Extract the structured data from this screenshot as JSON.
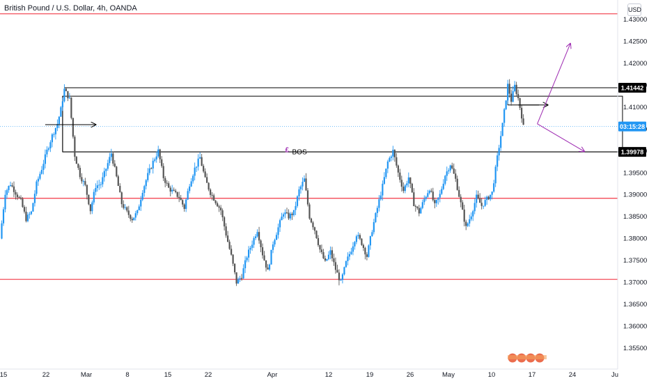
{
  "header": {
    "title": "British Pound / U.S. Dollar, 4h, OANDA",
    "currency": "USD"
  },
  "colors": {
    "up": "#2196f3",
    "down": "#555555",
    "support_line": "#f23645",
    "zone_border": "#000000",
    "arrow": "#9c27b0",
    "countdown_bg": "#2196f3"
  },
  "chart_data": {
    "type": "candlestick",
    "symbol": "GBPUSD",
    "interval": "4h",
    "ylim": [
      1.35,
      1.4313
    ],
    "y_ticks": [
      "1.43000",
      "1.42500",
      "1.42000",
      "1.41500",
      "1.41000",
      "1.40500",
      "1.40000",
      "1.39500",
      "1.39000",
      "1.38500",
      "1.38000",
      "1.37500",
      "1.37000",
      "1.36500",
      "1.36000",
      "1.35500"
    ],
    "x_ticks": [
      "15",
      "22",
      "Mar",
      "8",
      "15",
      "22",
      "Apr",
      "12",
      "19",
      "26",
      "May",
      "10",
      "17",
      "24",
      "Ju"
    ],
    "price_series": [
      [
        0,
        1.38
      ],
      [
        3,
        1.3905
      ],
      [
        6,
        1.3925
      ],
      [
        9,
        1.3905
      ],
      [
        12,
        1.3885
      ],
      [
        15,
        1.3845
      ],
      [
        18,
        1.386
      ],
      [
        21,
        1.3925
      ],
      [
        24,
        1.396
      ],
      [
        27,
        1.4
      ],
      [
        30,
        1.4035
      ],
      [
        33,
        1.4062
      ],
      [
        35,
        1.4095
      ],
      [
        37,
        1.414
      ],
      [
        40,
        1.4118
      ],
      [
        43,
        1.399
      ],
      [
        46,
        1.3945
      ],
      [
        49,
        1.392
      ],
      [
        52,
        1.3865
      ],
      [
        55,
        1.392
      ],
      [
        58,
        1.3925
      ],
      [
        61,
        1.396
      ],
      [
        64,
        1.3995
      ],
      [
        67,
        1.394
      ],
      [
        70,
        1.388
      ],
      [
        73,
        1.386
      ],
      [
        76,
        1.3845
      ],
      [
        79,
        1.386
      ],
      [
        82,
        1.391
      ],
      [
        85,
        1.3945
      ],
      [
        88,
        1.3975
      ],
      [
        91,
        1.4
      ],
      [
        94,
        1.394
      ],
      [
        97,
        1.3915
      ],
      [
        100,
        1.3905
      ],
      [
        103,
        1.3895
      ],
      [
        106,
        1.387
      ],
      [
        109,
        1.3925
      ],
      [
        112,
        1.396
      ],
      [
        115,
        1.3985
      ],
      [
        118,
        1.3935
      ],
      [
        121,
        1.3905
      ],
      [
        124,
        1.3885
      ],
      [
        127,
        1.3865
      ],
      [
        130,
        1.381
      ],
      [
        133,
        1.376
      ],
      [
        136,
        1.37
      ],
      [
        139,
        1.3715
      ],
      [
        142,
        1.376
      ],
      [
        145,
        1.379
      ],
      [
        148,
        1.382
      ],
      [
        151,
        1.3765
      ],
      [
        154,
        1.3725
      ],
      [
        157,
        1.379
      ],
      [
        160,
        1.3825
      ],
      [
        163,
        1.386
      ],
      [
        166,
        1.385
      ],
      [
        169,
        1.386
      ],
      [
        172,
        1.391
      ],
      [
        175,
        1.3935
      ],
      [
        178,
        1.385
      ],
      [
        181,
        1.382
      ],
      [
        184,
        1.3775
      ],
      [
        187,
        1.3745
      ],
      [
        190,
        1.377
      ],
      [
        193,
        1.373
      ],
      [
        196,
        1.37
      ],
      [
        199,
        1.3745
      ],
      [
        202,
        1.3775
      ],
      [
        205,
        1.381
      ],
      [
        208,
        1.379
      ],
      [
        211,
        1.376
      ],
      [
        214,
        1.382
      ],
      [
        217,
        1.387
      ],
      [
        220,
        1.392
      ],
      [
        223,
        1.3975
      ],
      [
        226,
        1.4
      ],
      [
        229,
        1.395
      ],
      [
        232,
        1.391
      ],
      [
        235,
        1.394
      ],
      [
        238,
        1.388
      ],
      [
        241,
        1.386
      ],
      [
        244,
        1.389
      ],
      [
        247,
        1.3915
      ],
      [
        250,
        1.3875
      ],
      [
        253,
        1.39
      ],
      [
        256,
        1.3945
      ],
      [
        259,
        1.397
      ],
      [
        262,
        1.3935
      ],
      [
        265,
        1.388
      ],
      [
        268,
        1.3825
      ],
      [
        271,
        1.3855
      ],
      [
        274,
        1.3895
      ],
      [
        277,
        1.3875
      ],
      [
        280,
        1.389
      ],
      [
        283,
        1.3905
      ],
      [
        286,
        1.3985
      ],
      [
        289,
        1.406
      ],
      [
        292,
        1.415
      ],
      [
        294,
        1.4115
      ],
      [
        296,
        1.4148
      ],
      [
        298,
        1.412
      ],
      [
        300,
        1.408
      ],
      [
        301,
        1.4055
      ]
    ],
    "series": [
      {
        "name": "1.41442",
        "value": 1.41442
      },
      {
        "name": "1.39978",
        "value": 1.39978
      },
      {
        "name": "03:15:28",
        "value": 1.40558
      }
    ],
    "horizontal_lines": [
      {
        "value": 1.4313
      },
      {
        "value": 1.3892
      },
      {
        "value": 1.3707
      }
    ],
    "zone": {
      "x0": 36,
      "x1": 358,
      "top": 1.4125,
      "bottom": 1.3998
    },
    "zone_inner_line": {
      "x0": 37,
      "x1": 358,
      "value": 1.41442
    },
    "annotations": [
      {
        "text": "BOS",
        "x": 168,
        "value": 1.3997
      },
      {
        "text": "£",
        "x": 164,
        "value": 1.4002
      }
    ],
    "arrows": [
      {
        "color": "black",
        "from": [
          26,
          1.406
        ],
        "to": [
          55,
          1.406
        ]
      },
      {
        "color": "black",
        "from": [
          298,
          1.4105
        ],
        "to": [
          315,
          1.4105
        ]
      },
      {
        "color": "purple",
        "from": [
          309,
          1.4062
        ],
        "to": [
          328,
          1.4245
        ]
      },
      {
        "color": "purple",
        "from": [
          309,
          1.4062
        ],
        "to": [
          336,
          1.3999
        ]
      }
    ],
    "x_range": [
      0,
      372
    ],
    "grid": false
  }
}
